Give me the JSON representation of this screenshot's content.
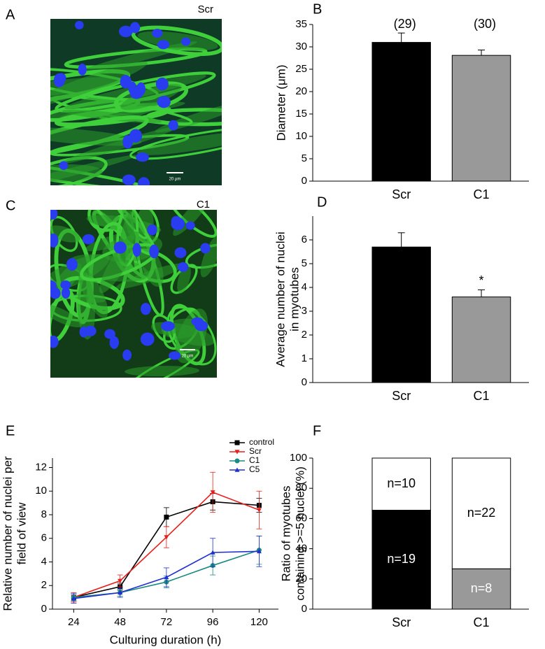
{
  "images": [
    {
      "panel": "A",
      "label": "Scr",
      "scale_bar": "20 µm"
    },
    {
      "panel": "C",
      "label": "C1",
      "scale_bar": "20 µm"
    }
  ],
  "chart_data": [
    {
      "type": "bar",
      "panel": "B",
      "ylabel": [
        "Diameter (μm)"
      ],
      "categories": [
        "Scr",
        "C1"
      ],
      "values": [
        31.0,
        28.1
      ],
      "errors": [
        2.1,
        1.2
      ],
      "colors": [
        "#000000",
        "#999999"
      ],
      "ylim": [
        0,
        35
      ],
      "yticks": [
        0,
        5,
        10,
        15,
        20,
        25,
        30,
        35
      ],
      "annotations": [
        {
          "category": "Scr",
          "text": "(29)"
        },
        {
          "category": "C1",
          "text": "(30)"
        }
      ]
    },
    {
      "type": "bar",
      "panel": "D",
      "ylabel": [
        "Average number of nuclei",
        "in myotubes"
      ],
      "categories": [
        "Scr",
        "C1"
      ],
      "values": [
        5.7,
        3.6
      ],
      "errors": [
        0.6,
        0.3
      ],
      "colors": [
        "#000000",
        "#999999"
      ],
      "ylim": [
        0,
        7
      ],
      "yticks": [
        0,
        1,
        2,
        3,
        4,
        5,
        6
      ],
      "annotations": [
        {
          "category": "C1",
          "text": "*"
        }
      ]
    },
    {
      "type": "line",
      "panel": "E",
      "ylabel": [
        "Relative number of nuclei per",
        "field of view"
      ],
      "xlabel": "Culturing duration (h)",
      "x": [
        24,
        48,
        72,
        96,
        120
      ],
      "xlim": [
        13,
        130
      ],
      "xticks": [
        24,
        48,
        72,
        96,
        120
      ],
      "ylim": [
        0,
        12.8
      ],
      "yticks": [
        0,
        2,
        4,
        6,
        8,
        10,
        12
      ],
      "legend": "upper right",
      "series": [
        {
          "name": "control",
          "color": "#000000",
          "marker": "square",
          "values": [
            1.0,
            1.9,
            7.8,
            9.1,
            8.8
          ],
          "errors": [
            0.3,
            0.3,
            0.8,
            0.7,
            0.6
          ]
        },
        {
          "name": "Scr",
          "color": "#e8201c",
          "marker": "triangle-down",
          "values": [
            1.0,
            2.4,
            6.1,
            9.9,
            8.4
          ],
          "errors": [
            0.4,
            0.5,
            0.9,
            1.7,
            1.6
          ]
        },
        {
          "name": "C1",
          "color": "#1b8a82",
          "marker": "circle",
          "values": [
            1.0,
            1.4,
            2.3,
            3.7,
            5.0
          ],
          "errors": [
            0.3,
            0.3,
            0.5,
            0.8,
            1.2
          ]
        },
        {
          "name": "C5",
          "color": "#1f2fd0",
          "marker": "triangle-up",
          "values": [
            0.9,
            1.4,
            2.7,
            4.8,
            4.9
          ],
          "errors": [
            0.4,
            0.4,
            0.8,
            1.2,
            1.3
          ]
        }
      ]
    },
    {
      "type": "stacked-bar",
      "panel": "F",
      "ylabel": [
        "Ratio of myotubes",
        "containing >=5 nuclei (%)"
      ],
      "categories": [
        "Scr",
        "C1"
      ],
      "series": [
        {
          "colors": [
            "#000000",
            "#999999"
          ],
          "values": [
            65.5,
            26.7
          ]
        },
        {
          "colors": [
            "#ffffff",
            "#ffffff"
          ],
          "values": [
            34.5,
            73.3
          ]
        }
      ],
      "ylim": [
        0,
        100
      ],
      "yticks": [
        0,
        20,
        40,
        60,
        80,
        100
      ],
      "annotations": [
        {
          "category": "Scr",
          "segment": 0,
          "text": "n=19"
        },
        {
          "category": "Scr",
          "segment": 1,
          "text": "n=10"
        },
        {
          "category": "C1",
          "segment": 1,
          "text": "n=22"
        },
        {
          "category": "C1",
          "segment": 0,
          "text": "n=8"
        }
      ]
    }
  ]
}
